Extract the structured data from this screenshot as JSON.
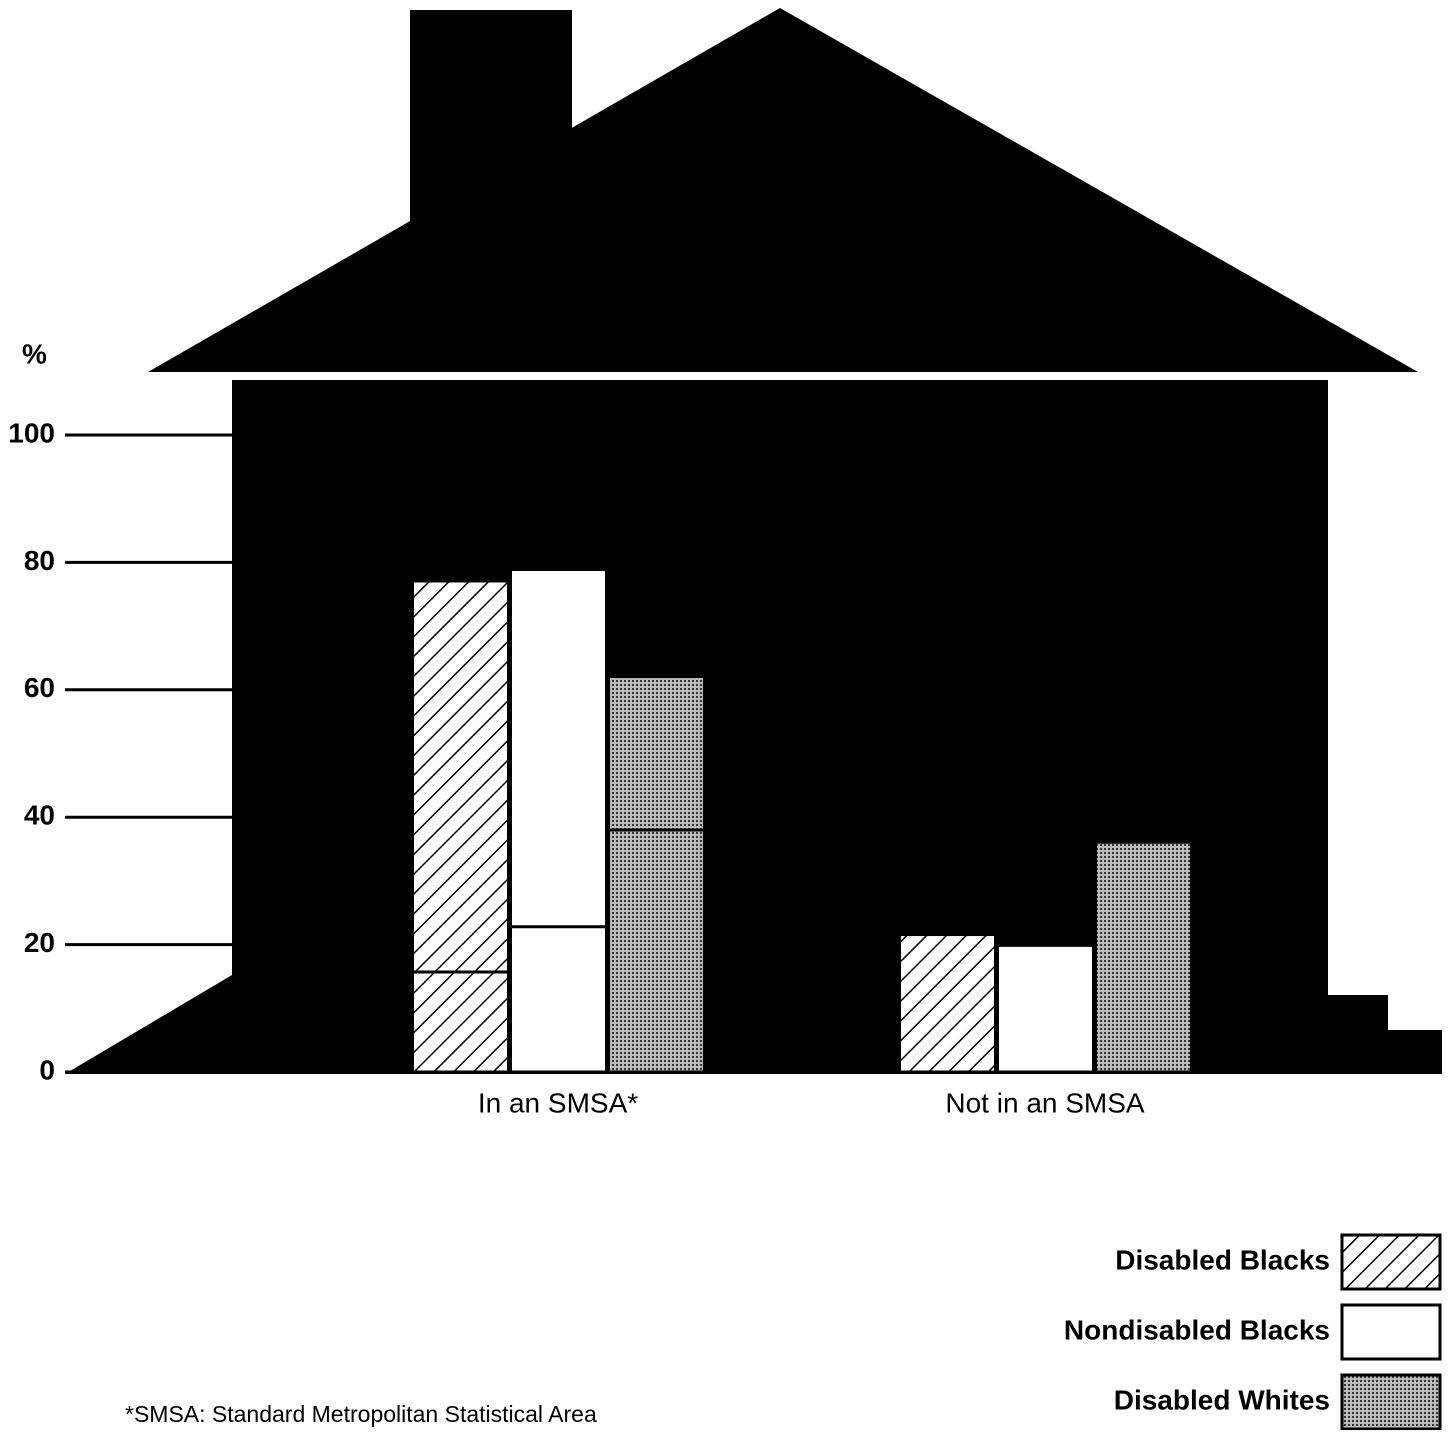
{
  "chart_data": {
    "type": "bar",
    "y_label": "%",
    "categories": [
      "In an SMSA*",
      "Not in an SMSA"
    ],
    "series": [
      {
        "name": "Disabled Blacks",
        "pattern": "hatch",
        "values": [
          77,
          21.5
        ],
        "split_values": [
          15.7,
          null
        ]
      },
      {
        "name": "Nondisabled Blacks",
        "pattern": "solid",
        "values": [
          78.8,
          19.8
        ],
        "split_values": [
          22.8,
          null
        ]
      },
      {
        "name": "Disabled Whites",
        "pattern": "dots",
        "values": [
          62,
          36
        ],
        "split_values": [
          38,
          null
        ]
      }
    ],
    "ylim": [
      0,
      100
    ],
    "yticks": [
      0,
      20,
      40,
      60,
      80,
      100
    ],
    "legend": "bottom-right",
    "footnote": "*SMSA: Standard Metropolitan Statistical Area"
  }
}
